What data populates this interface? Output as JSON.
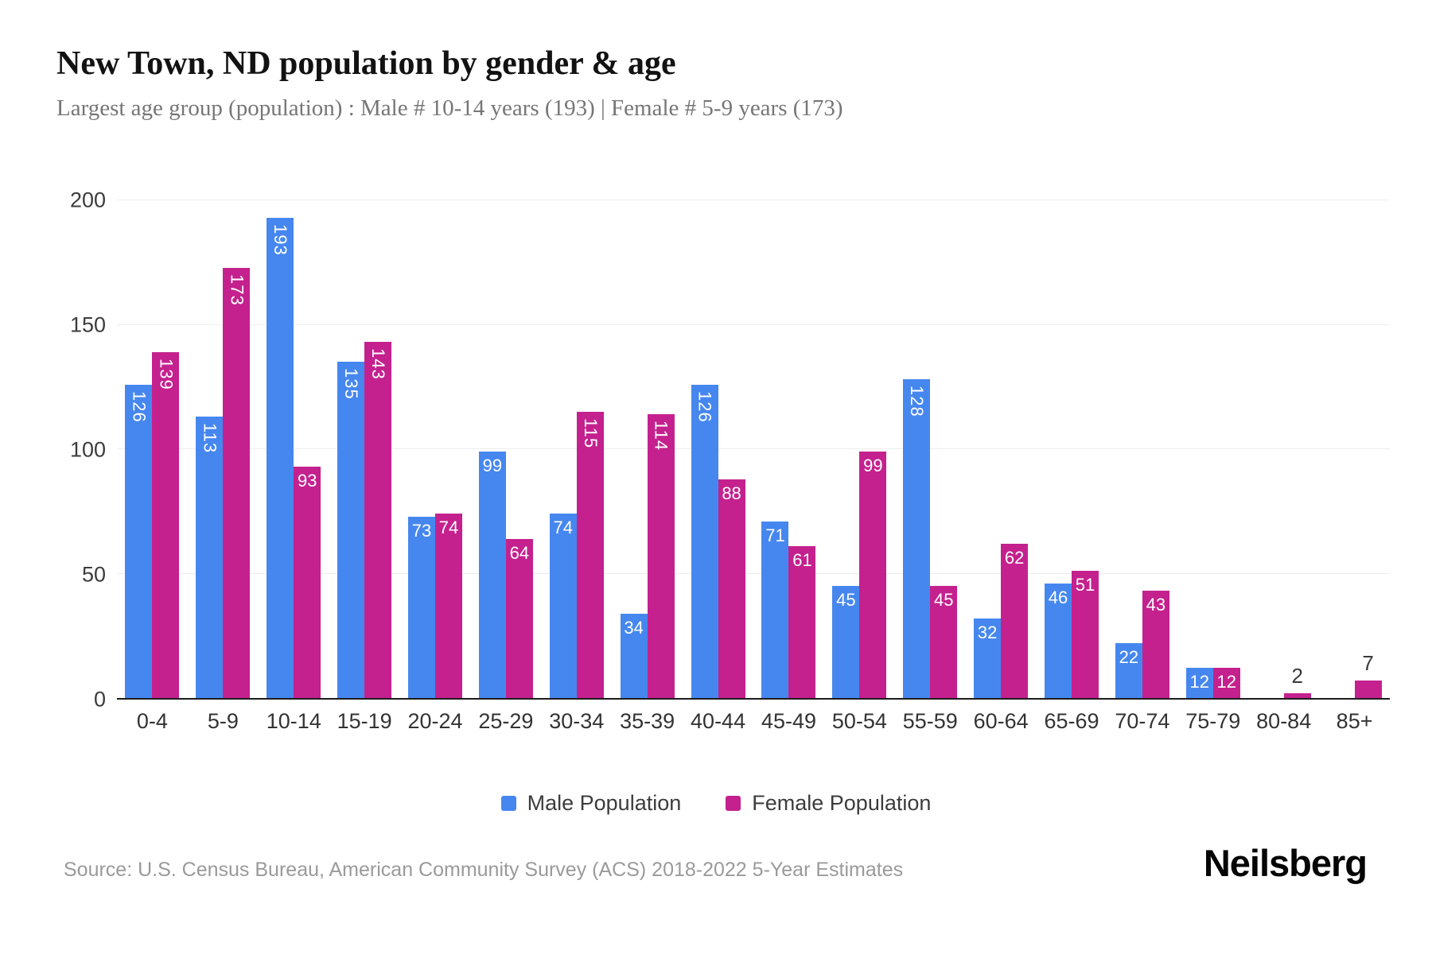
{
  "header": {
    "title": "New Town, ND population by gender & age",
    "subtitle": "Largest age group (population) : Male # 10-14 years (193) | Female # 5-9 years (173)"
  },
  "chart_data": {
    "type": "bar",
    "title": "New Town, ND population by gender & age",
    "categories": [
      "0-4",
      "5-9",
      "10-14",
      "15-19",
      "20-24",
      "25-29",
      "30-34",
      "35-39",
      "40-44",
      "45-49",
      "50-54",
      "55-59",
      "60-64",
      "65-69",
      "70-74",
      "75-79",
      "80-84",
      "85+"
    ],
    "series": [
      {
        "name": "Male Population",
        "color": "#4687ef",
        "values": [
          126,
          113,
          193,
          135,
          73,
          99,
          74,
          34,
          126,
          71,
          45,
          128,
          32,
          46,
          22,
          12,
          0,
          0
        ]
      },
      {
        "name": "Female Population",
        "color": "#c4218e",
        "values": [
          139,
          173,
          93,
          143,
          74,
          64,
          115,
          114,
          88,
          61,
          99,
          45,
          62,
          51,
          43,
          12,
          2,
          7
        ]
      }
    ],
    "xlabel": "",
    "ylabel": "",
    "ylim": [
      0,
      200
    ],
    "yticks": [
      0,
      50,
      100,
      150,
      200
    ],
    "grid": true,
    "legend_position": "bottom",
    "colors": {
      "male": "#4687ef",
      "female": "#c4218e",
      "grid": "#ededed",
      "axis": "#1c1c1c",
      "label_inside": "#ffffff",
      "label_above": "#3a3a3a"
    }
  },
  "footer": {
    "source": "Source: U.S. Census Bureau, American Community Survey (ACS) 2018-2022 5-Year Estimates",
    "logo": "Neilsberg"
  }
}
